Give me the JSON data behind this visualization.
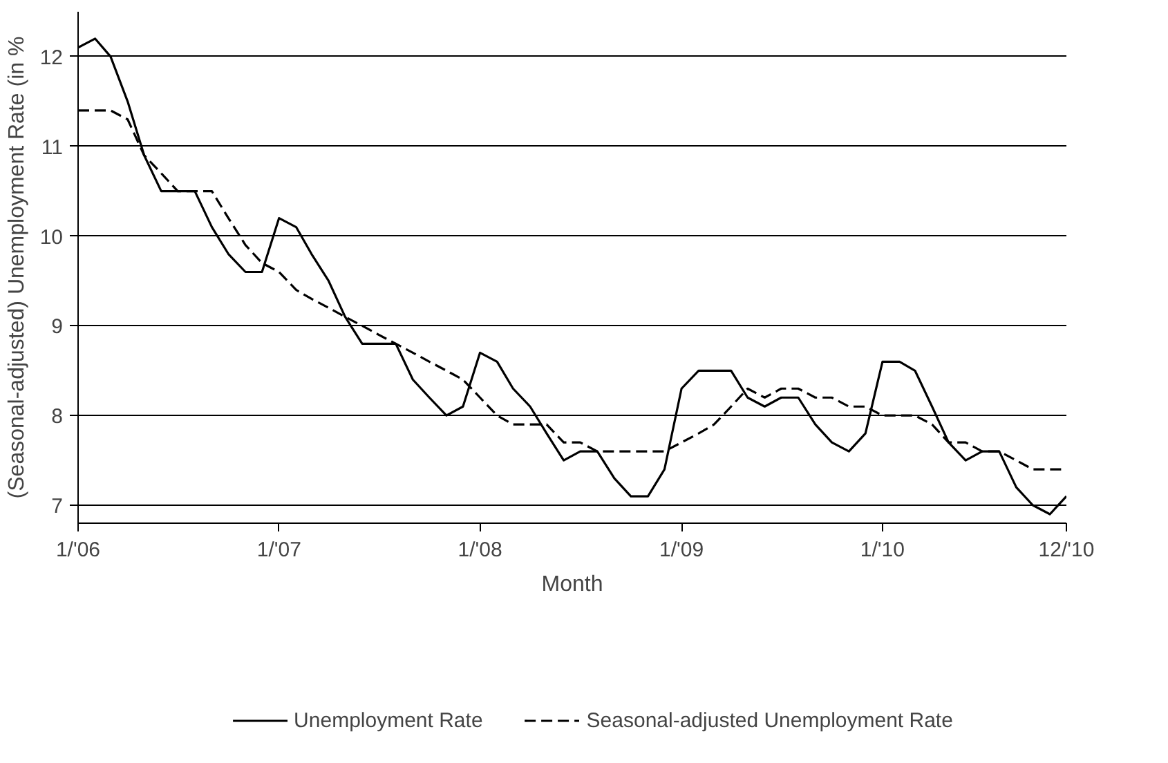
{
  "chart_data": {
    "type": "line",
    "xlabel": "Month",
    "ylabel": "(Seasonal-adjusted) Unemployment Rate (in %",
    "x": [
      "2006-01",
      "2006-02",
      "2006-03",
      "2006-04",
      "2006-05",
      "2006-06",
      "2006-07",
      "2006-08",
      "2006-09",
      "2006-10",
      "2006-11",
      "2006-12",
      "2007-01",
      "2007-02",
      "2007-03",
      "2007-04",
      "2007-05",
      "2007-06",
      "2007-07",
      "2007-08",
      "2007-09",
      "2007-10",
      "2007-11",
      "2007-12",
      "2008-01",
      "2008-02",
      "2008-03",
      "2008-04",
      "2008-05",
      "2008-06",
      "2008-07",
      "2008-08",
      "2008-09",
      "2008-10",
      "2008-11",
      "2008-12",
      "2009-01",
      "2009-02",
      "2009-03",
      "2009-04",
      "2009-05",
      "2009-06",
      "2009-07",
      "2009-08",
      "2009-09",
      "2009-10",
      "2009-11",
      "2009-12",
      "2010-01",
      "2010-02",
      "2010-03",
      "2010-04",
      "2010-05",
      "2010-06",
      "2010-07",
      "2010-08",
      "2010-09",
      "2010-10",
      "2010-11",
      "2010-12"
    ],
    "series": [
      {
        "name": "Unemployment Rate",
        "color": "#000000",
        "line_style": "solid",
        "values": [
          12.1,
          12.2,
          12.0,
          11.5,
          10.9,
          10.5,
          10.5,
          10.5,
          10.1,
          9.8,
          9.6,
          9.6,
          10.2,
          10.1,
          9.8,
          9.5,
          9.1,
          8.8,
          8.8,
          8.8,
          8.4,
          8.2,
          8.0,
          8.1,
          8.7,
          8.6,
          8.3,
          8.1,
          7.8,
          7.5,
          7.6,
          7.6,
          7.3,
          7.1,
          7.1,
          7.4,
          8.3,
          8.5,
          8.5,
          8.5,
          8.2,
          8.1,
          8.2,
          8.2,
          7.9,
          7.7,
          7.6,
          7.8,
          8.6,
          8.6,
          8.5,
          8.1,
          7.7,
          7.5,
          7.6,
          7.6,
          7.2,
          7.0,
          6.9,
          7.1
        ]
      },
      {
        "name": "Seasonal-adjusted Unemployment Rate",
        "color": "#000000",
        "line_style": "dashed",
        "values": [
          11.4,
          11.4,
          11.4,
          11.3,
          10.9,
          10.7,
          10.5,
          10.5,
          10.5,
          10.2,
          9.9,
          9.7,
          9.6,
          9.4,
          9.3,
          9.2,
          9.1,
          9.0,
          8.9,
          8.8,
          8.7,
          8.6,
          8.5,
          8.4,
          8.2,
          8.0,
          7.9,
          7.9,
          7.9,
          7.7,
          7.7,
          7.6,
          7.6,
          7.6,
          7.6,
          7.6,
          7.7,
          7.8,
          7.9,
          8.1,
          8.3,
          8.2,
          8.3,
          8.3,
          8.2,
          8.2,
          8.1,
          8.1,
          8.0,
          8.0,
          8.0,
          7.9,
          7.7,
          7.7,
          7.6,
          7.6,
          7.5,
          7.4,
          7.4,
          7.4
        ]
      }
    ],
    "xlim": [
      "2006-01",
      "2010-12"
    ],
    "xticks": [
      {
        "value": "2006-01",
        "label": "1/'06"
      },
      {
        "value": "2007-01",
        "label": "1/'07"
      },
      {
        "value": "2008-01",
        "label": "1/'08"
      },
      {
        "value": "2009-01",
        "label": "1/'09"
      },
      {
        "value": "2010-01",
        "label": "1/'10"
      },
      {
        "value": "2010-12",
        "label": "12/'10"
      }
    ],
    "ylim": [
      6.8,
      12.5
    ],
    "yticks": [
      7,
      8,
      9,
      10,
      11,
      12
    ],
    "grid": "y",
    "legend": "bottom",
    "marker": "none"
  }
}
